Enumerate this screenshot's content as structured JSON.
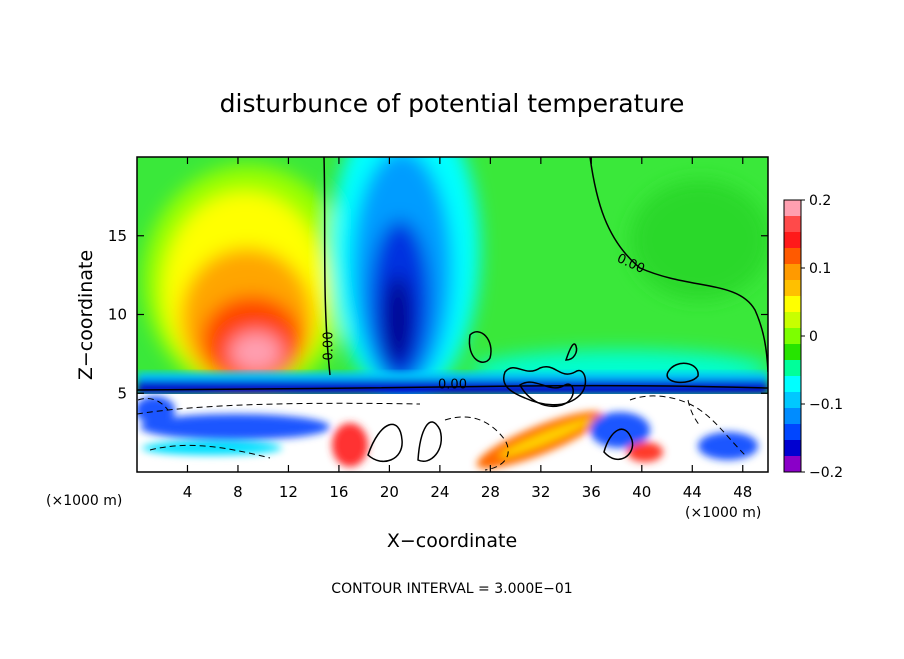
{
  "chart_data": {
    "type": "heatmap",
    "title": "disturbunce of potential temperature",
    "xlabel": "X−coordinate",
    "ylabel": "Z−coordinate",
    "x_unit_left": "(×1000 m)",
    "x_unit_right": "(×1000 m)",
    "x_range": [
      0,
      50
    ],
    "y_range": [
      0,
      20
    ],
    "x_ticks": [
      4,
      8,
      12,
      16,
      20,
      24,
      28,
      32,
      36,
      40,
      44,
      48
    ],
    "y_ticks": [
      5,
      10,
      15
    ],
    "contour_labels": [
      {
        "text": "0.00",
        "x": 15.5,
        "y": 8.0
      },
      {
        "text": "0.00",
        "x": 39.0,
        "y": 13.0
      },
      {
        "text": "0.00",
        "x": 25.0,
        "y": 5.3
      }
    ],
    "zero_contour_level": 5.3,
    "colorbar": {
      "min": -0.2,
      "max": 0.2,
      "tick_values": [
        0.2,
        0.1,
        0,
        -0.1,
        -0.2
      ],
      "tick_labels": [
        "0.2",
        "0.1",
        "0",
        "−0.1",
        "−0.2"
      ],
      "colors": [
        "#ff9fb0",
        "#ff4a4a",
        "#ff1a1a",
        "#ff5a00",
        "#ff9a00",
        "#ffc000",
        "#ffff00",
        "#c8ff00",
        "#7dff00",
        "#26e400",
        "#00ff9a",
        "#00ffff",
        "#00c8ff",
        "#008cff",
        "#0046ff",
        "#0000d0",
        "#8a00c8"
      ]
    },
    "annotation": "CONTOUR INTERVAL = 3.000E−01"
  }
}
